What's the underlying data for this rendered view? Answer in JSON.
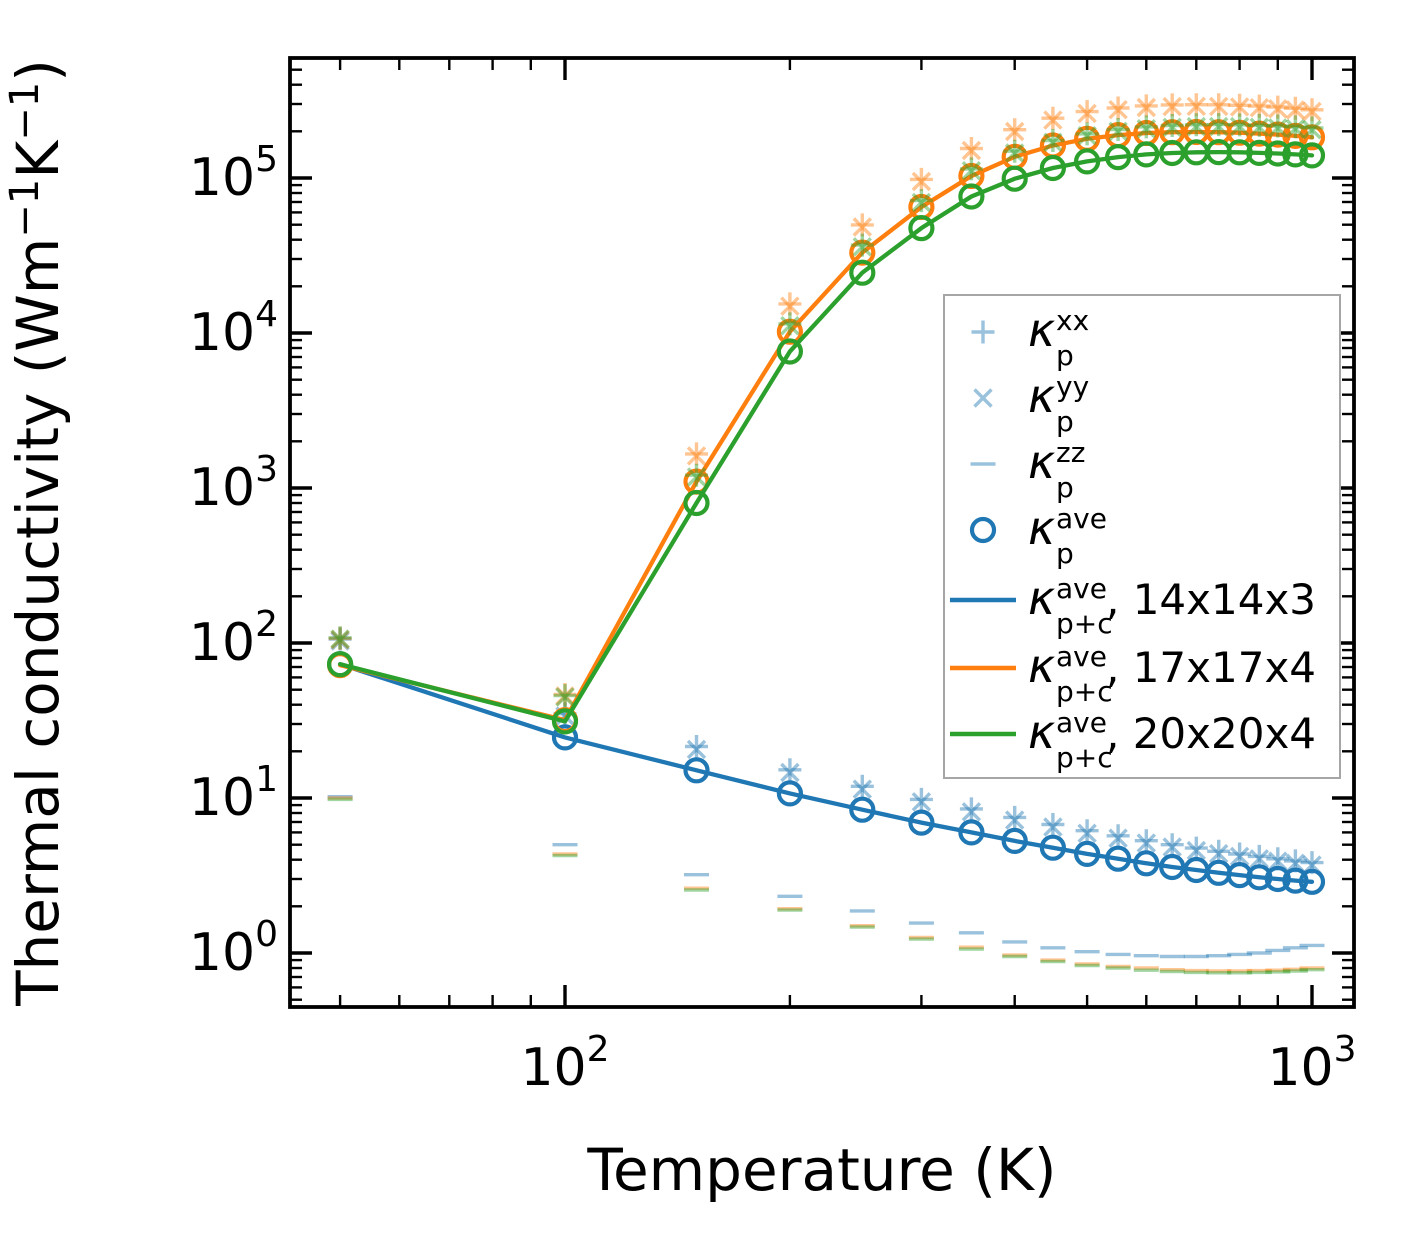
{
  "chart_data": {
    "type": "line",
    "title": "",
    "xlabel": "Temperature (K)",
    "ylabel": "Thermal conductivity (Wm⁻¹K⁻¹)",
    "ylabel_parts": [
      {
        "t": "Thermal conductivity (Wm"
      },
      {
        "t": "−1",
        "sup": true
      },
      {
        "t": "K"
      },
      {
        "t": "−1",
        "sup": true
      },
      {
        "t": ")"
      }
    ],
    "xscale": "log",
    "yscale": "log",
    "xlim": [
      43,
      1140
    ],
    "ylim": [
      0.45,
      594000
    ],
    "grid": false,
    "x_major_ticks": [
      100,
      1000
    ],
    "x_tick_label_exps": [
      2,
      3
    ],
    "x_minor_ticks": [
      50,
      60,
      70,
      80,
      90,
      200,
      300,
      400,
      500,
      600,
      700,
      800,
      900
    ],
    "y_major_tick_exps": [
      0,
      1,
      2,
      3,
      4,
      5
    ],
    "legend_position": "center right",
    "temperatures": [
      50,
      100,
      150,
      200,
      250,
      300,
      350,
      400,
      450,
      500,
      550,
      600,
      650,
      700,
      750,
      800,
      850,
      900,
      950,
      1000
    ],
    "series": [
      {
        "id": "kp_xx_14",
        "color_key": "c14",
        "type": "markers",
        "marker": "plus",
        "alpha": 0.45,
        "in_legend": true,
        "label": {
          "k": "κ",
          "sup": "xx",
          "sub": "p",
          "rest": ""
        },
        "values": [
          106,
          35,
          21.5,
          15.2,
          11.9,
          9.8,
          8.5,
          7.5,
          6.75,
          6.15,
          5.7,
          5.3,
          5.0,
          4.75,
          4.53,
          4.35,
          4.2,
          4.05,
          3.93,
          3.83
        ]
      },
      {
        "id": "kp_yy_14",
        "color_key": "c14",
        "type": "markers",
        "marker": "x",
        "alpha": 0.45,
        "in_legend": true,
        "label": {
          "k": "κ",
          "sup": "yy",
          "sub": "p",
          "rest": ""
        },
        "values": [
          103,
          33.8,
          20.6,
          14.6,
          11.4,
          9.45,
          8.15,
          7.2,
          6.5,
          5.92,
          5.5,
          5.12,
          4.82,
          4.58,
          4.37,
          4.2,
          4.05,
          3.91,
          3.79,
          3.69
        ]
      },
      {
        "id": "kp_zz_14",
        "color_key": "c14",
        "type": "markers",
        "marker": "hline",
        "alpha": 0.45,
        "in_legend": true,
        "label": {
          "k": "κ",
          "sup": "zz",
          "sub": "p",
          "rest": ""
        },
        "values": [
          10.2,
          5.0,
          3.2,
          2.32,
          1.87,
          1.56,
          1.35,
          1.18,
          1.08,
          1.02,
          0.98,
          0.96,
          0.95,
          0.95,
          0.96,
          0.98,
          1.0,
          1.04,
          1.08,
          1.12
        ]
      },
      {
        "id": "kpc_ave_14",
        "color_key": "c14",
        "type": "line",
        "marker": null,
        "alpha": 1,
        "in_legend": true,
        "label": {
          "k": "κ",
          "sup": "ave",
          "sub": "p+c",
          "rest": ", 14x14x3"
        },
        "values": [
          73,
          24.6,
          15.1,
          10.7,
          8.4,
          6.94,
          6.0,
          5.29,
          4.78,
          4.36,
          4.06,
          3.79,
          3.59,
          3.43,
          3.29,
          3.18,
          3.08,
          3.0,
          2.93,
          2.88
        ]
      },
      {
        "id": "kp_ave_14",
        "color_key": "c14",
        "type": "markers",
        "marker": "circle",
        "alpha": 1,
        "in_legend": true,
        "label": {
          "k": "κ",
          "sup": "ave",
          "sub": "p",
          "rest": ""
        },
        "values": [
          73,
          24.6,
          15.1,
          10.7,
          8.4,
          6.94,
          6.0,
          5.29,
          4.78,
          4.36,
          4.06,
          3.79,
          3.59,
          3.43,
          3.29,
          3.18,
          3.08,
          3.0,
          2.93,
          2.88
        ]
      },
      {
        "id": "kp_xx_17",
        "color_key": "c17",
        "type": "markers",
        "marker": "plus",
        "alpha": 0.45,
        "in_legend": false,
        "label": {
          "k": "κ",
          "sup": "xx",
          "sub": "p",
          "rest": ""
        },
        "values": [
          107,
          46.5,
          1660,
          15400,
          49800,
          98000,
          155000,
          205000,
          243000,
          268000,
          283000,
          292000,
          296000,
          297000,
          296500,
          294500,
          291000,
          286500,
          281500,
          275500
        ]
      },
      {
        "id": "kp_yy_17",
        "color_key": "c17",
        "type": "markers",
        "marker": "x",
        "alpha": 0.45,
        "in_legend": false,
        "label": {
          "k": "κ",
          "sup": "yy",
          "sub": "p",
          "rest": ""
        },
        "values": [
          105,
          45.5,
          1610,
          14900,
          48300,
          95000,
          150500,
          199500,
          236500,
          261000,
          276000,
          285000,
          289000,
          290000,
          289500,
          287500,
          284000,
          279500,
          274500,
          268500
        ]
      },
      {
        "id": "kp_zz_17",
        "color_key": "c17",
        "type": "markers",
        "marker": "hline",
        "alpha": 0.45,
        "in_legend": false,
        "label": {
          "k": "κ",
          "sup": "zz",
          "sub": "p",
          "rest": ""
        },
        "values": [
          10.0,
          4.35,
          2.62,
          1.93,
          1.5,
          1.26,
          1.09,
          0.97,
          0.9,
          0.85,
          0.82,
          0.8,
          0.78,
          0.77,
          0.765,
          0.765,
          0.77,
          0.775,
          0.785,
          0.8
        ]
      },
      {
        "id": "kpc_ave_17",
        "color_key": "c17",
        "type": "line",
        "marker": null,
        "alpha": 1,
        "in_legend": true,
        "label": {
          "k": "κ",
          "sup": "ave",
          "sub": "p+c",
          "rest": ", 17x17x4"
        },
        "values": [
          72,
          31.8,
          1100,
          10200,
          33000,
          65000,
          103000,
          137000,
          162000,
          179000,
          189000,
          195000,
          197500,
          198000,
          197500,
          196000,
          193500,
          190500,
          187000,
          183000
        ]
      },
      {
        "id": "kp_ave_17",
        "color_key": "c17",
        "type": "markers",
        "marker": "circle",
        "alpha": 1,
        "in_legend": false,
        "label": {
          "k": "κ",
          "sup": "ave",
          "sub": "p",
          "rest": ""
        },
        "values": [
          72,
          31.8,
          1100,
          10200,
          33000,
          65000,
          103000,
          137000,
          162000,
          179000,
          189000,
          195000,
          197500,
          198000,
          197500,
          196000,
          193500,
          190500,
          187000,
          183000
        ]
      },
      {
        "id": "kp_xx_20",
        "color_key": "c20",
        "type": "markers",
        "marker": "plus",
        "alpha": 0.45,
        "in_legend": false,
        "label": {
          "k": "κ",
          "sup": "xx",
          "sub": "p",
          "rest": ""
        },
        "values": [
          108,
          45.8,
          1210,
          11450,
          36900,
          71500,
          114500,
          149000,
          174500,
          192500,
          205500,
          213500,
          218000,
          220500,
          221000,
          220000,
          218500,
          216500,
          213500,
          210500
        ]
      },
      {
        "id": "kp_yy_20",
        "color_key": "c20",
        "type": "markers",
        "marker": "x",
        "alpha": 0.45,
        "in_legend": false,
        "label": {
          "k": "κ",
          "sup": "yy",
          "sub": "p",
          "rest": ""
        },
        "values": [
          106,
          44.8,
          1180,
          11150,
          36000,
          69500,
          111500,
          145000,
          170000,
          187500,
          200000,
          208000,
          212500,
          214500,
          215000,
          214500,
          212500,
          210500,
          208000,
          205000
        ]
      },
      {
        "id": "kp_zz_20",
        "color_key": "c20",
        "type": "markers",
        "marker": "hline",
        "alpha": 0.45,
        "in_legend": false,
        "label": {
          "k": "κ",
          "sup": "zz",
          "sub": "p",
          "rest": ""
        },
        "values": [
          9.8,
          4.25,
          2.55,
          1.89,
          1.47,
          1.23,
          1.06,
          0.95,
          0.88,
          0.83,
          0.8,
          0.775,
          0.76,
          0.75,
          0.745,
          0.745,
          0.75,
          0.755,
          0.765,
          0.78
        ]
      },
      {
        "id": "kpc_ave_20",
        "color_key": "c20",
        "type": "line",
        "marker": null,
        "alpha": 1,
        "in_legend": true,
        "label": {
          "k": "κ",
          "sup": "ave",
          "sub": "p+c",
          "rest": ", 20x20x4"
        },
        "values": [
          73,
          31.2,
          800,
          7600,
          24500,
          47500,
          76000,
          99000,
          116000,
          128000,
          136500,
          142000,
          145000,
          146500,
          147000,
          146500,
          145200,
          144000,
          142000,
          140000
        ]
      },
      {
        "id": "kp_ave_20",
        "color_key": "c20",
        "type": "markers",
        "marker": "circle",
        "alpha": 1,
        "in_legend": false,
        "label": {
          "k": "κ",
          "sup": "ave",
          "sub": "p",
          "rest": ""
        },
        "values": [
          73,
          31.2,
          800,
          7600,
          24500,
          47500,
          76000,
          99000,
          116000,
          128000,
          136500,
          142000,
          145000,
          146500,
          147000,
          146500,
          145200,
          144000,
          142000,
          140000
        ]
      }
    ],
    "legend_entry_ids": [
      "kp_xx_14",
      "kp_yy_14",
      "kp_zz_14",
      "kp_ave_14",
      "kpc_ave_14",
      "kpc_ave_17",
      "kpc_ave_20"
    ]
  },
  "colors": {
    "c14": "#1f77b4",
    "c17": "#ff7f0e",
    "c20": "#2ca02c",
    "axis": "#000000",
    "legend_border": "#a6a6a6",
    "background": "#ffffff",
    "light_marker_alpha": 0.45
  }
}
